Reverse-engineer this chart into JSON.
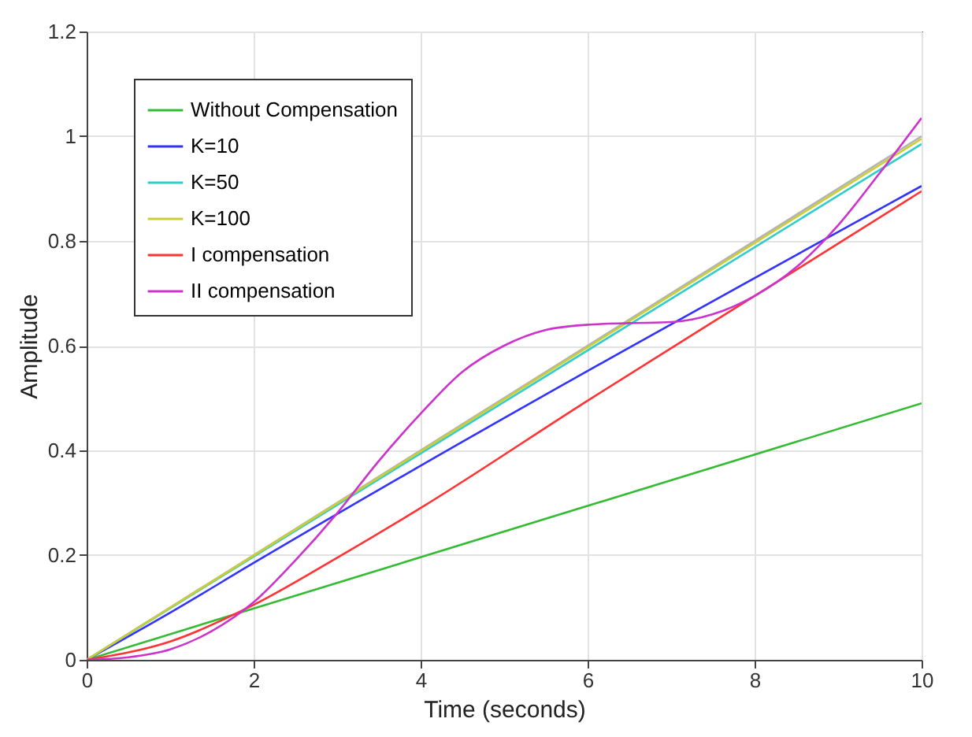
{
  "chart_data": {
    "type": "line",
    "xlabel": "Time (seconds)",
    "ylabel": "Amplitude",
    "x": [
      0,
      0.5,
      1,
      1.5,
      2,
      2.5,
      3,
      3.5,
      4,
      4.5,
      5,
      5.5,
      6,
      6.5,
      7,
      7.5,
      8,
      8.5,
      9,
      9.5,
      10
    ],
    "series": [
      {
        "color": "#b3b3b3",
        "x": [
          0,
          10
        ],
        "values": [
          0,
          1
        ]
      },
      {
        "name": "Without Compensation",
        "color": "#33bb33",
        "x": [
          0,
          10
        ],
        "values": [
          0,
          0.49
        ]
      },
      {
        "name": "K=10",
        "color": "#3333ff",
        "x": [
          0,
          1,
          2,
          10
        ],
        "values": [
          0,
          0.09,
          0.185,
          0.905
        ]
      },
      {
        "name": "K=50",
        "color": "#33cccc",
        "x": [
          0,
          10
        ],
        "values": [
          0,
          0.985
        ]
      },
      {
        "name": "K=100",
        "color": "#cccc33",
        "x": [
          0,
          10
        ],
        "values": [
          0,
          0.995
        ]
      },
      {
        "name": "I compensation",
        "color": "#ff3333",
        "x": [
          0,
          1,
          2,
          3,
          4,
          6,
          8,
          10
        ],
        "values": [
          0,
          0.035,
          0.105,
          0.195,
          0.29,
          0.495,
          0.695,
          0.895
        ]
      },
      {
        "name": "II compensation",
        "color": "#cc33cc",
        "values": [
          0,
          0.005,
          0.02,
          0.055,
          0.11,
          0.19,
          0.28,
          0.38,
          0.47,
          0.55,
          0.6,
          0.63,
          0.64,
          0.643,
          0.645,
          0.66,
          0.695,
          0.75,
          0.83,
          0.93,
          1.035
        ]
      }
    ],
    "xlim": [
      0,
      10
    ],
    "xticks": [
      0,
      2,
      4,
      6,
      8,
      10
    ],
    "ylim": [
      0,
      1.2
    ],
    "yticks": [
      0,
      0.2,
      0.4,
      0.6,
      0.8,
      1,
      1.2
    ],
    "grid": true,
    "legend": "top left"
  }
}
